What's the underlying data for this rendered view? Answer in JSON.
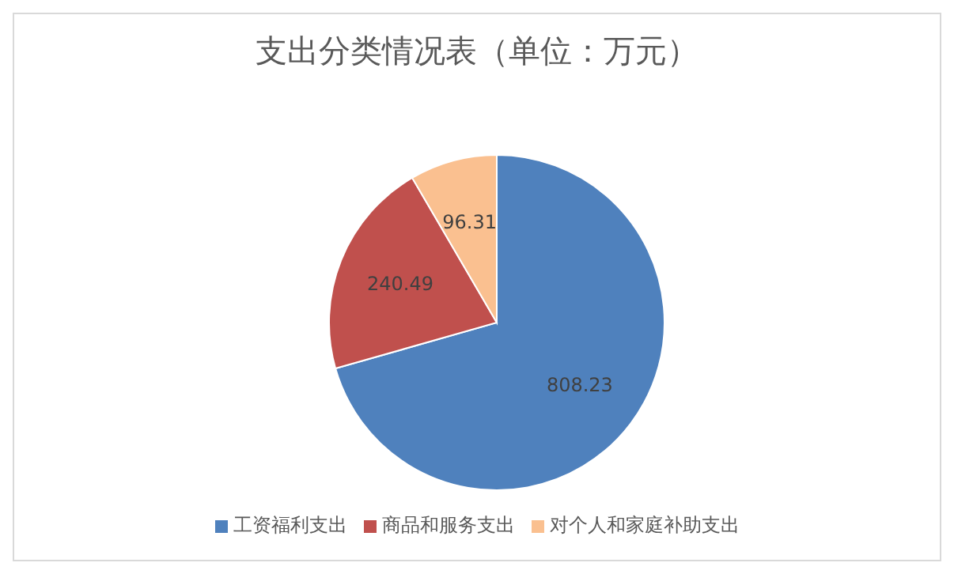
{
  "chart_data": {
    "type": "pie",
    "title": "支出分类情况表（单位：万元）",
    "categories": [
      "工资福利支出",
      "商品和服务支出",
      "对个人和家庭补助支出"
    ],
    "values": [
      808.23,
      240.49,
      96.31
    ],
    "colors": [
      "#4f81bd",
      "#c0504d",
      "#fac090"
    ],
    "data_labels": true,
    "legend": "bottom"
  }
}
